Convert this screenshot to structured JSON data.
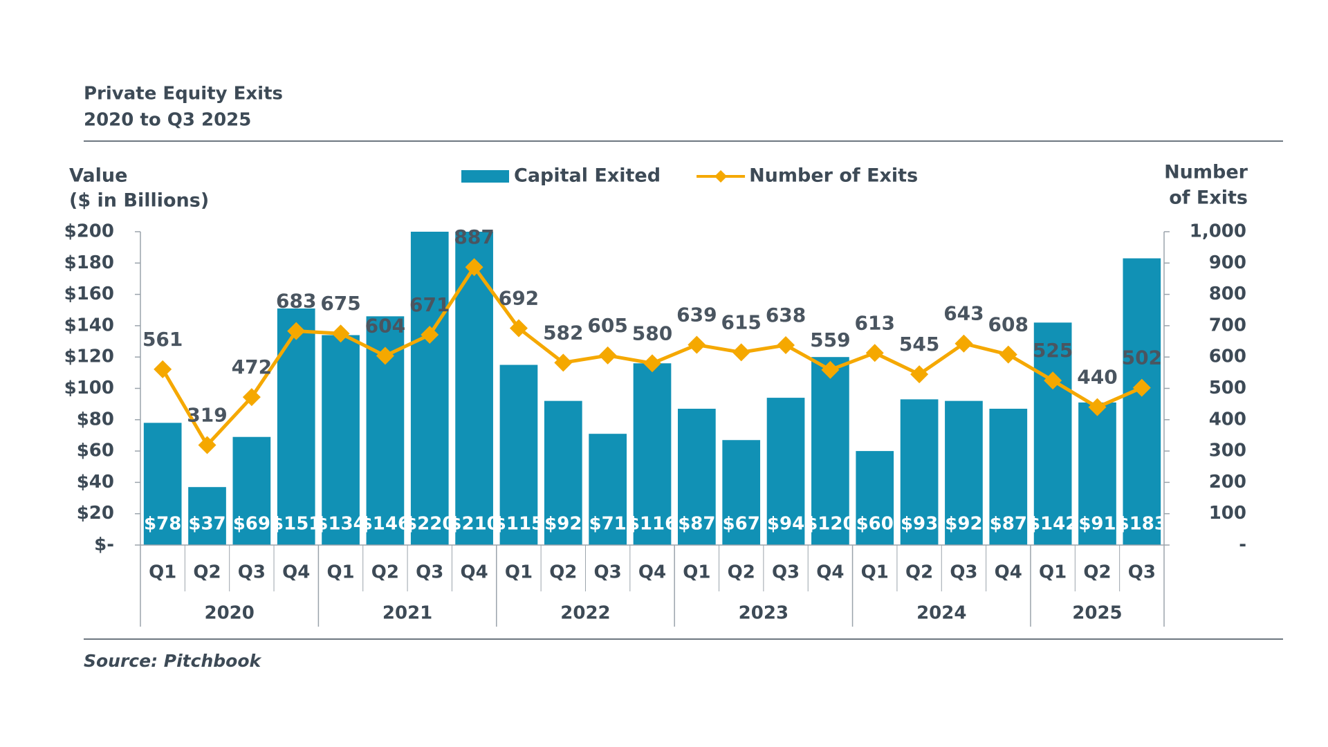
{
  "chart_data": {
    "type": "bar",
    "title": "Private Equity Exits",
    "subtitle": "2020 to Q3 2025",
    "y_label": [
      "Value",
      "($ in Billions)"
    ],
    "y2_label": [
      "Number",
      "of Exits"
    ],
    "source": "Source: Pitchbook",
    "groups": [
      {
        "name": "2020",
        "categories": [
          "Q1",
          "Q2",
          "Q3",
          "Q4"
        ]
      },
      {
        "name": "2021",
        "categories": [
          "Q1",
          "Q2",
          "Q3",
          "Q4"
        ]
      },
      {
        "name": "2022",
        "categories": [
          "Q1",
          "Q2",
          "Q3",
          "Q4"
        ]
      },
      {
        "name": "2023",
        "categories": [
          "Q1",
          "Q2",
          "Q3",
          "Q4"
        ]
      },
      {
        "name": "2024",
        "categories": [
          "Q1",
          "Q2",
          "Q3",
          "Q4"
        ]
      },
      {
        "name": "2025",
        "categories": [
          "Q1",
          "Q2",
          "Q3"
        ]
      }
    ],
    "series": [
      {
        "name": "Capital Exited",
        "type": "bar",
        "color": "#1191b5",
        "values": [
          78,
          37,
          69,
          151,
          134,
          146,
          220,
          210,
          115,
          92,
          71,
          116,
          87,
          67,
          94,
          120,
          60,
          93,
          92,
          87,
          142,
          91,
          183
        ],
        "value_labels": [
          "$78",
          "$37",
          "$69",
          "$151",
          "$134",
          "$146",
          "$220",
          "$210",
          "$115",
          "$92",
          "$71",
          "$116",
          "$87",
          "$67",
          "$94",
          "$120",
          "$60",
          "$93",
          "$92",
          "$87",
          "$142",
          "$91",
          "$183"
        ]
      },
      {
        "name": "Number of Exits",
        "type": "line",
        "axis": "y2",
        "color": "#f5a800",
        "values": [
          561,
          319,
          472,
          683,
          675,
          604,
          671,
          887,
          692,
          582,
          605,
          580,
          639,
          615,
          638,
          559,
          613,
          545,
          643,
          608,
          525,
          440,
          502
        ]
      }
    ],
    "ylim": [
      0,
      200
    ],
    "yticks": [
      {
        "value": 0,
        "label": "$-"
      },
      {
        "value": 20,
        "label": "$20"
      },
      {
        "value": 40,
        "label": "$40"
      },
      {
        "value": 60,
        "label": "$60"
      },
      {
        "value": 80,
        "label": "$80"
      },
      {
        "value": 100,
        "label": "$100"
      },
      {
        "value": 120,
        "label": "$120"
      },
      {
        "value": 140,
        "label": "$140"
      },
      {
        "value": 160,
        "label": "$160"
      },
      {
        "value": 180,
        "label": "$180"
      },
      {
        "value": 200,
        "label": "$200"
      }
    ],
    "y2lim": [
      0,
      1000
    ],
    "y2ticks": [
      {
        "value": 0,
        "label": "-"
      },
      100,
      200,
      300,
      400,
      500,
      600,
      700,
      800,
      900,
      {
        "value": 1000,
        "label": "1,000"
      }
    ],
    "legend": "top"
  }
}
